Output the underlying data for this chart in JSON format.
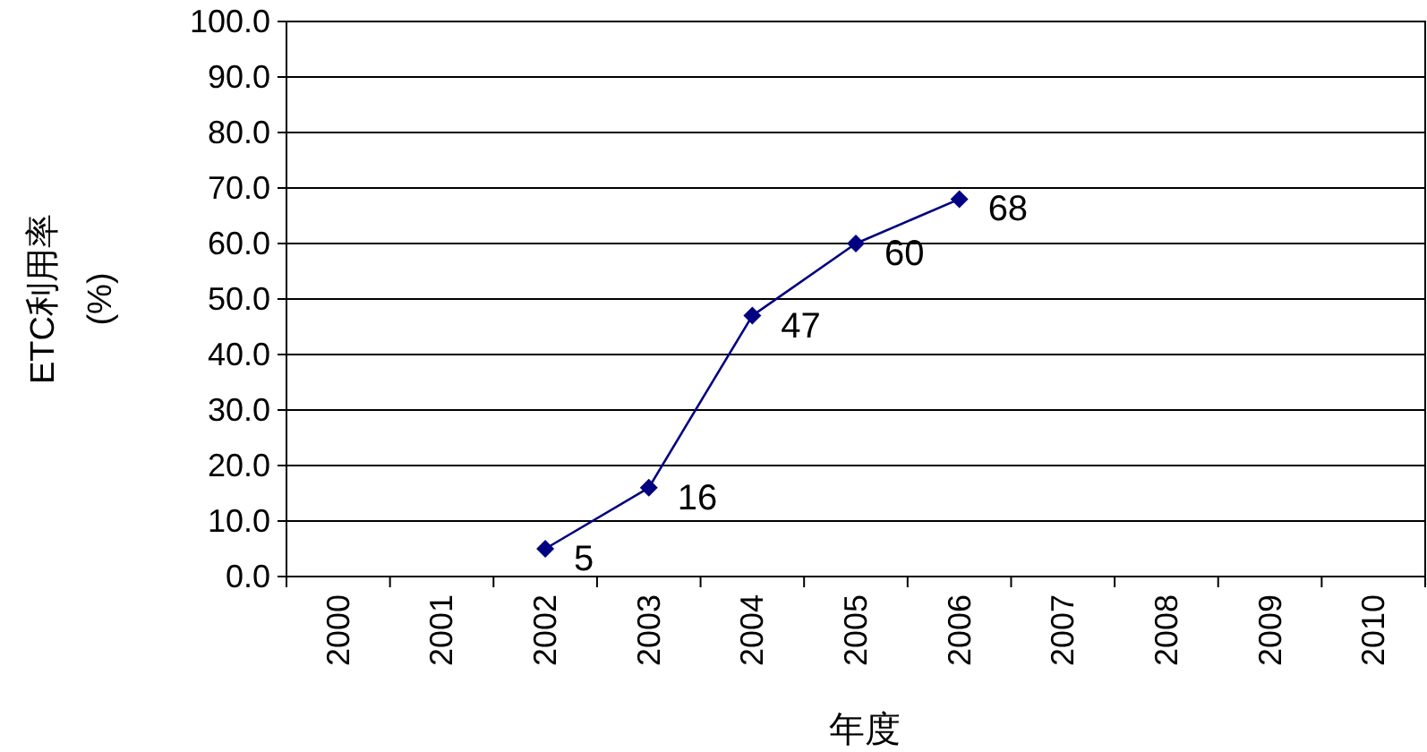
{
  "chart_data": {
    "type": "line",
    "ylabel": "ETC利用率\n(%)",
    "xlabel": "年度",
    "categories": [
      "2000",
      "2001",
      "2002",
      "2003",
      "2004",
      "2005",
      "2006",
      "2007",
      "2008",
      "2009",
      "2010"
    ],
    "series": [
      {
        "color": "#000080",
        "values": [
          null,
          null,
          5,
          16,
          47,
          60,
          68,
          null,
          null,
          null,
          null
        ]
      }
    ],
    "ylim": [
      0,
      100
    ],
    "yticks": [
      {
        "value": 0,
        "label": "0.0"
      },
      {
        "value": 10,
        "label": "10.0"
      },
      {
        "value": 20,
        "label": "20.0"
      },
      {
        "value": 30,
        "label": "30.0"
      },
      {
        "value": 40,
        "label": "40.0"
      },
      {
        "value": 50,
        "label": "50.0"
      },
      {
        "value": 60,
        "label": "60.0"
      },
      {
        "value": 70,
        "label": "70.0"
      },
      {
        "value": 80,
        "label": "80.0"
      },
      {
        "value": 90,
        "label": "90.0"
      },
      {
        "value": 100,
        "label": "100.0"
      }
    ],
    "grid": "y",
    "marker": "diamond",
    "line_style": "solid",
    "data_labels": true
  }
}
